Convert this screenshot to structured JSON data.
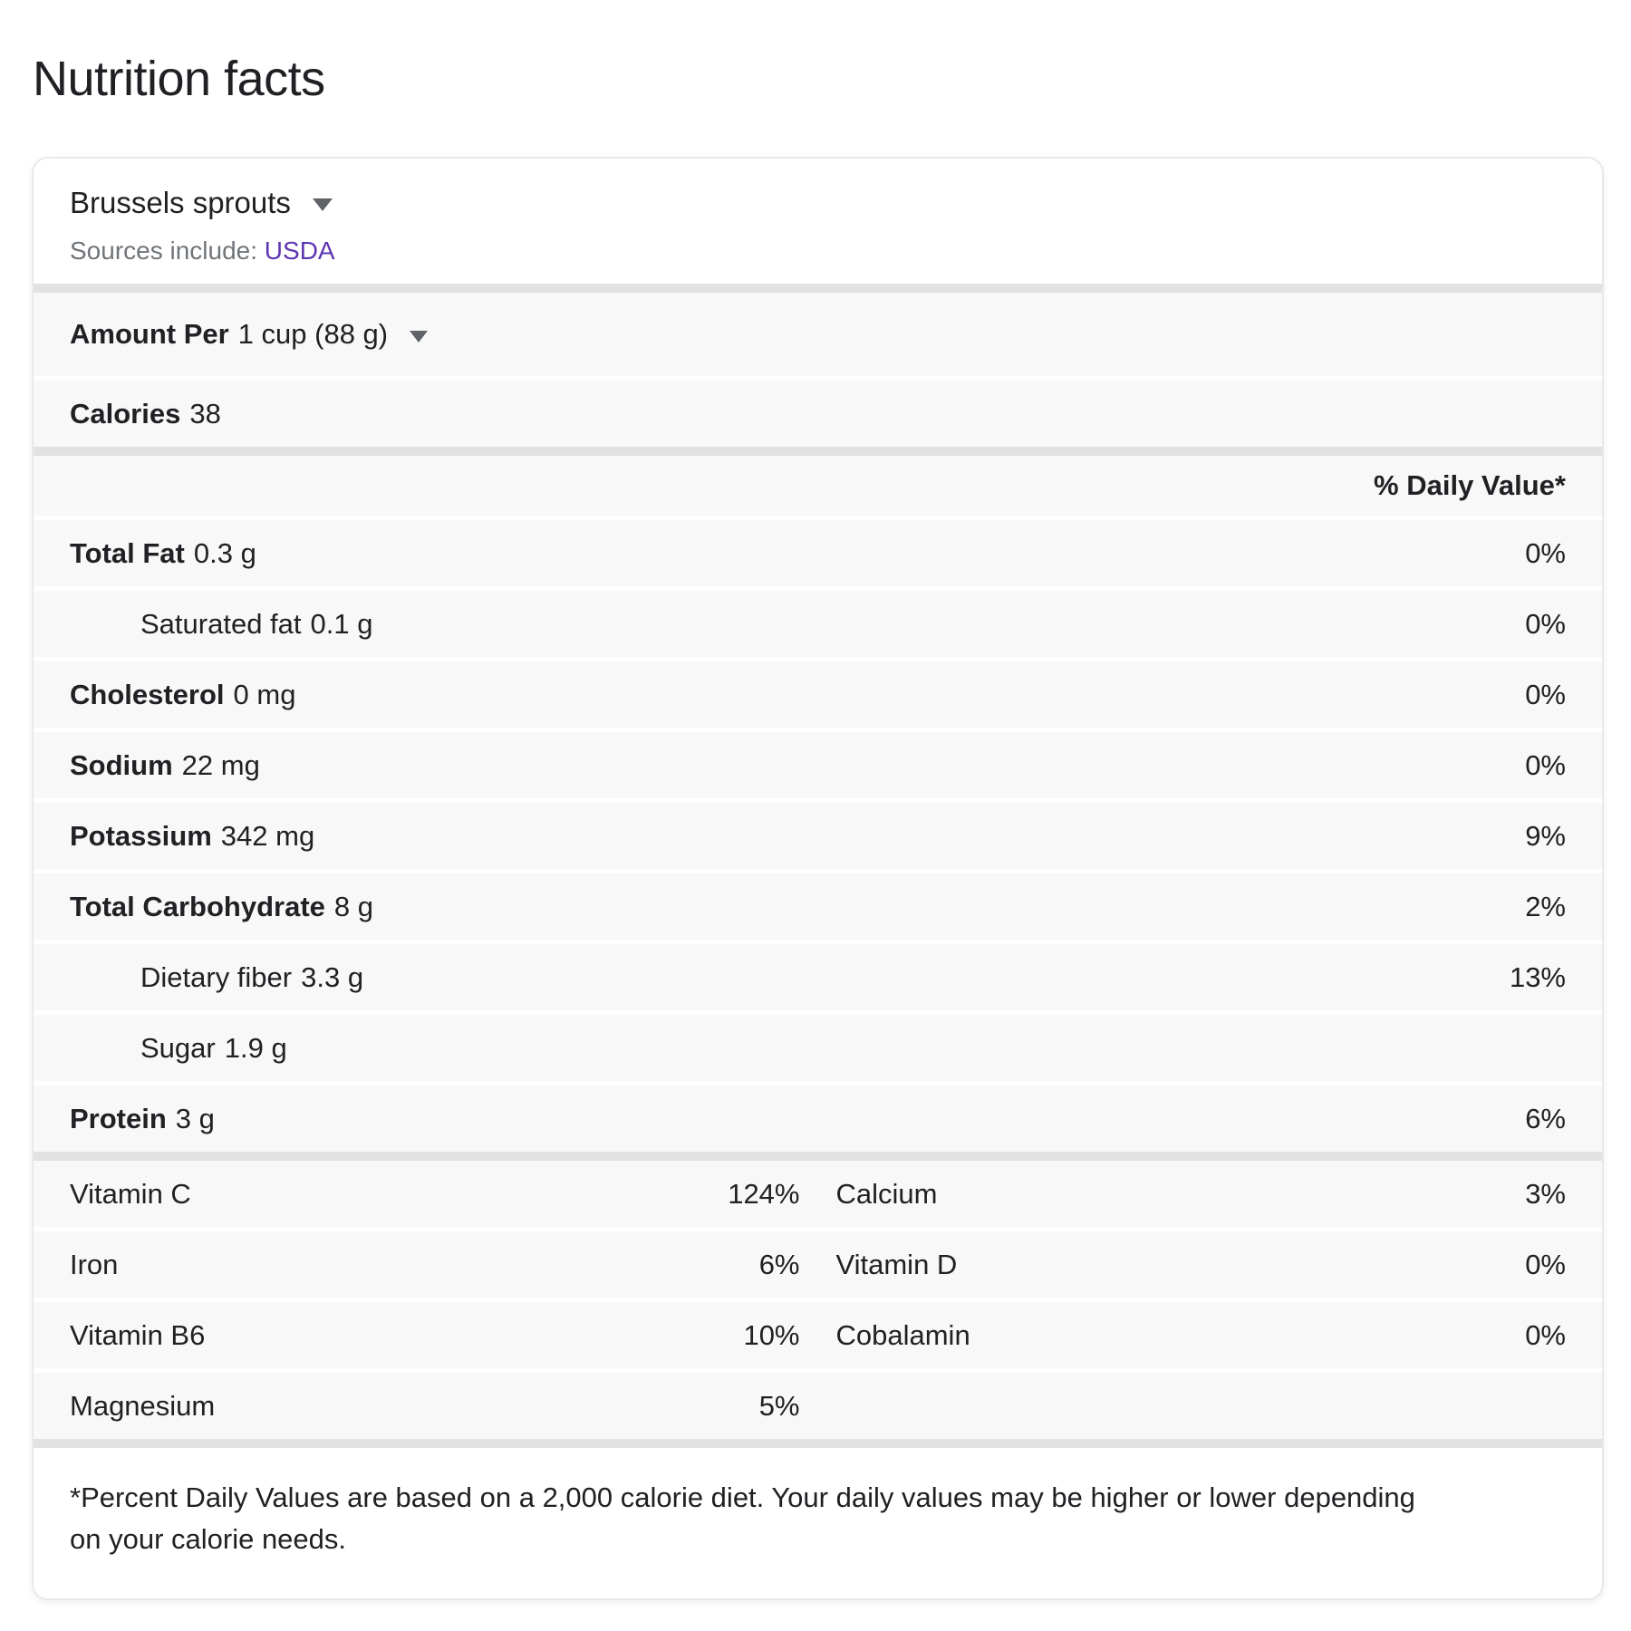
{
  "page": {
    "title": "Nutrition facts"
  },
  "card": {
    "food": {
      "name": "Brussels sprouts"
    },
    "sources": {
      "label": "Sources include:",
      "link": "USDA"
    },
    "serving": {
      "label": "Amount Per",
      "value": "1 cup (88 g)"
    },
    "calories": {
      "label": "Calories",
      "value": "38"
    },
    "daily_value_header": "% Daily Value*",
    "nutrients": [
      {
        "label": "Total Fat",
        "amount": "0.3 g",
        "dv": "0%"
      },
      {
        "label": "Saturated fat",
        "amount": "0.1 g",
        "dv": "0%"
      },
      {
        "label": "Cholesterol",
        "amount": "0 mg",
        "dv": "0%"
      },
      {
        "label": "Sodium",
        "amount": "22 mg",
        "dv": "0%"
      },
      {
        "label": "Potassium",
        "amount": "342 mg",
        "dv": "9%"
      },
      {
        "label": "Total Carbohydrate",
        "amount": "8 g",
        "dv": "2%"
      },
      {
        "label": "Dietary fiber",
        "amount": "3.3 g",
        "dv": "13%"
      },
      {
        "label": "Sugar",
        "amount": "1.9 g",
        "dv": ""
      },
      {
        "label": "Protein",
        "amount": "3 g",
        "dv": "6%"
      }
    ],
    "micronutrients": [
      {
        "left": {
          "label": "Vitamin C",
          "value": "124%"
        },
        "right": {
          "label": "Calcium",
          "value": "3%"
        }
      },
      {
        "left": {
          "label": "Iron",
          "value": "6%"
        },
        "right": {
          "label": "Vitamin D",
          "value": "0%"
        }
      },
      {
        "left": {
          "label": "Vitamin B6",
          "value": "10%"
        },
        "right": {
          "label": "Cobalamin",
          "value": "0%"
        }
      },
      {
        "left": {
          "label": "Magnesium",
          "value": "5%"
        },
        "right": {
          "label": "",
          "value": ""
        }
      }
    ],
    "footnote": "*Percent Daily Values are based on a 2,000 calorie diet. Your daily values may be higher or lower depending on your calorie needs."
  },
  "colors": {
    "text_primary": "#202124",
    "text_secondary": "#70757a",
    "link_purple": "#5e35b1",
    "row_background": "#f8f8f8",
    "section_divider": "#e2e2e2"
  }
}
